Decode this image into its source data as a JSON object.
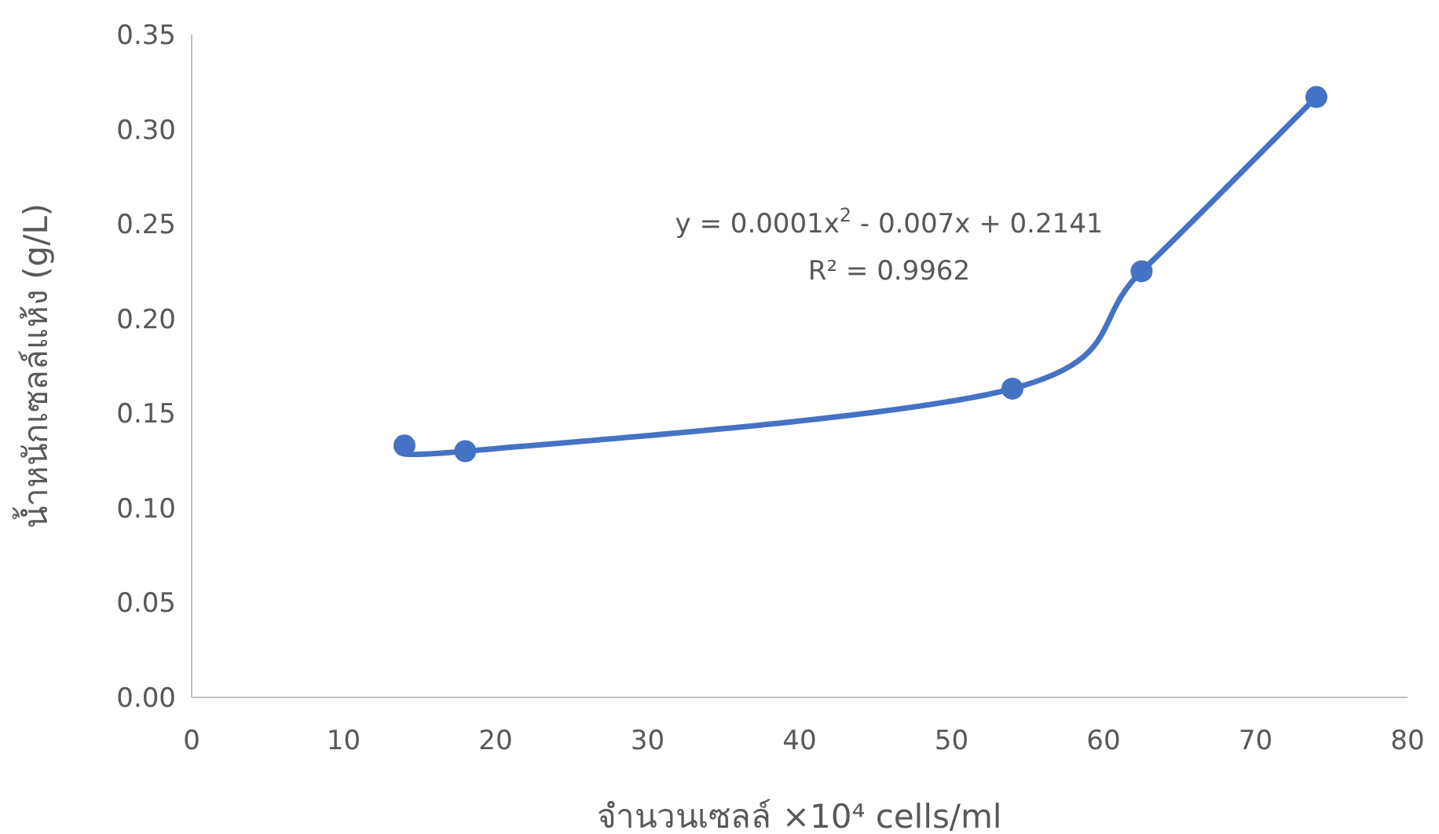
{
  "chart_data": {
    "type": "line",
    "xlabel": "จำนวนเซลล์ ×10⁴ cells/ml",
    "ylabel": "น้ำหนักเซลล์แห้ง (g/L)",
    "x": [
      14,
      18,
      54,
      62.5,
      74
    ],
    "series": [
      {
        "color": "#4472c4",
        "values": [
          0.133,
          0.13,
          0.163,
          0.225,
          0.317
        ]
      }
    ],
    "xlim": [
      0,
      80
    ],
    "xticks": [
      0,
      10,
      20,
      30,
      40,
      50,
      60,
      70,
      80
    ],
    "ylim": [
      0,
      0.35
    ],
    "yticks": [
      {
        "value": 0,
        "label": "0.00"
      },
      {
        "value": 0.05,
        "label": "0.05"
      },
      {
        "value": 0.1,
        "label": "0.10"
      },
      {
        "value": 0.15,
        "label": "0.15"
      },
      {
        "value": 0.2,
        "label": "0.20"
      },
      {
        "value": 0.25,
        "label": "0.25"
      },
      {
        "value": 0.3,
        "label": "0.30"
      },
      {
        "value": 0.35,
        "label": "0.35"
      }
    ],
    "annotations": [
      "y = 0.0001x$^{2}$ - 0.007x + 0.2141",
      "R² = 0.9962"
    ],
    "marker": "circle",
    "line_style": "solid"
  }
}
